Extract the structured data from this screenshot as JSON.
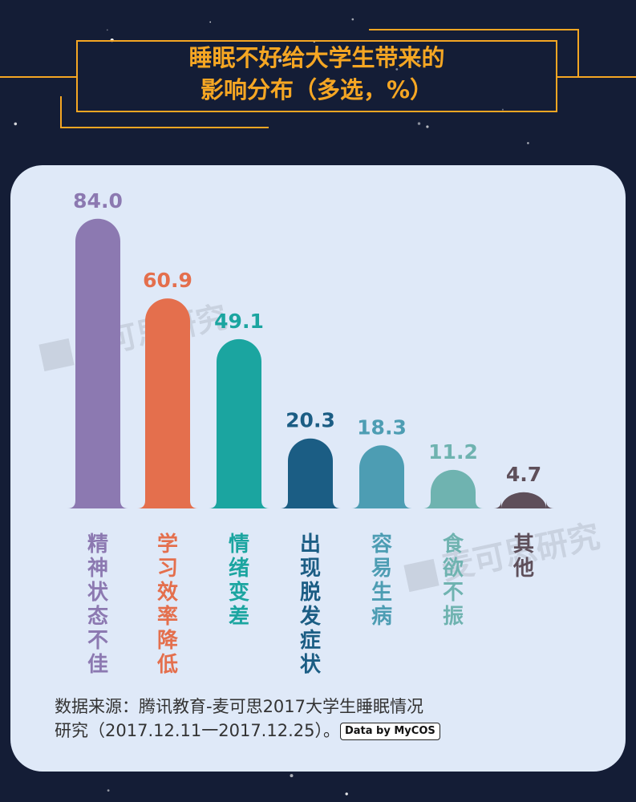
{
  "title": {
    "line1": "睡眠不好给大学生带来的",
    "line2": "影响分布（多选，%）"
  },
  "watermark": "麦可思研究",
  "source": {
    "line1": "数据来源：腾讯教育-麦可思2017大学生睡眠情况",
    "line2": "研究（2017.12.11一2017.12.25）。",
    "badge": "Data by MyCOS"
  },
  "colors": {
    "background": "#141d36",
    "card": "#dfe9f8",
    "accent": "#f5a623"
  },
  "chart_data": {
    "type": "bar",
    "categories": [
      "精神状态不佳",
      "学习效率降低",
      "情绪变差",
      "出现脱发症状",
      "容易生病",
      "食欲不振",
      "其他"
    ],
    "values": [
      84.0,
      60.9,
      49.1,
      20.3,
      18.3,
      11.2,
      4.7
    ],
    "value_labels": [
      "84.0",
      "60.9",
      "49.1",
      "20.3",
      "18.3",
      "11.2",
      "4.7"
    ],
    "colors": [
      "#8c79b1",
      "#e46f4d",
      "#1ba5a0",
      "#1b5d84",
      "#4d9db3",
      "#6fb3b0",
      "#5e4f5a"
    ],
    "ylim": [
      0,
      100
    ],
    "grid": false,
    "legend": "none"
  }
}
